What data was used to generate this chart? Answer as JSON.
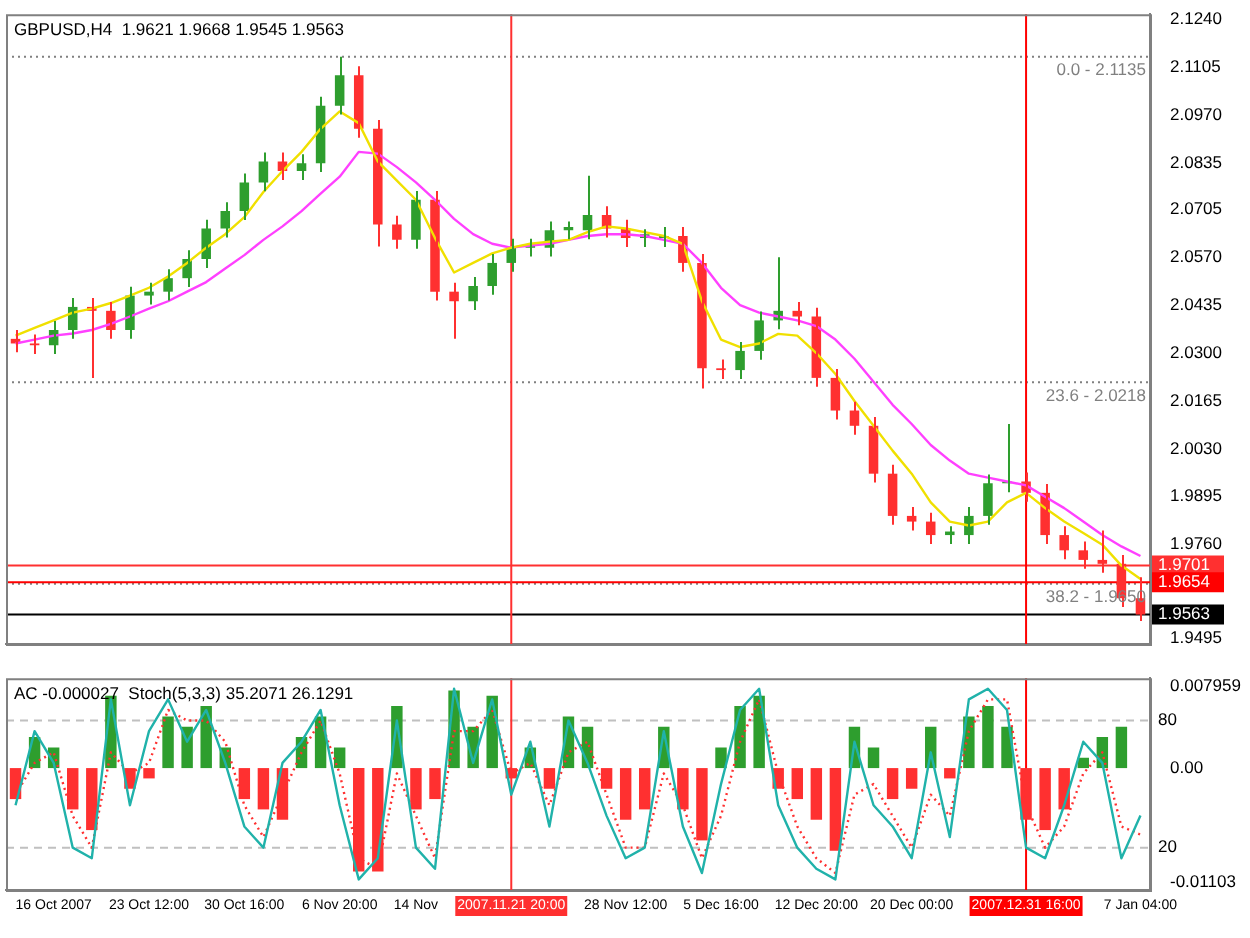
{
  "chart_data": [
    {
      "type": "candlestick",
      "title": "GBPUSD,H4  1.9621 1.9668 1.9545 1.9563",
      "categories": [
        null,
        null,
        "16 Oct 2007",
        null,
        null,
        null,
        null,
        "23 Oct 12:00",
        null,
        null,
        null,
        null,
        "30 Oct 16:00",
        null,
        null,
        null,
        null,
        "6 Nov 20:00",
        null,
        null,
        null,
        "14 Nov",
        null,
        null,
        null,
        null,
        "2007.11.21 20:00",
        null,
        null,
        null,
        null,
        null,
        "28 Nov 12:00",
        null,
        null,
        null,
        null,
        "5 Dec 16:00",
        null,
        null,
        null,
        null,
        "12 Dec 20:00",
        null,
        null,
        null,
        null,
        "20 Dec 00:00",
        null,
        null,
        null,
        null,
        null,
        "2007.12.31 16:00",
        null,
        null,
        null,
        null,
        null,
        "7 Jan 04:00"
      ],
      "annotations": [
        {
          "text": "0.0 - 2.1135",
          "y": 2.1135
        },
        {
          "text": "23.6 - 2.0218",
          "y": 2.0218
        },
        {
          "text": "38.2 - 1.9650",
          "y": 1.965
        }
      ],
      "ohlc": [
        [
          2.034,
          2.0365,
          2.0302,
          2.0327
        ],
        [
          2.0327,
          2.0352,
          2.0297,
          2.0322
        ],
        [
          2.0322,
          2.039,
          2.0297,
          2.0365
        ],
        [
          2.0365,
          2.0455,
          2.034,
          2.043
        ],
        [
          2.043,
          2.0455,
          2.023,
          2.0419
        ],
        [
          2.0419,
          2.0444,
          2.034,
          2.0365
        ],
        [
          2.0365,
          2.0487,
          2.034,
          2.0462
        ],
        [
          2.0462,
          2.0498,
          2.0437,
          2.0473
        ],
        [
          2.0473,
          2.0536,
          2.0448,
          2.0511
        ],
        [
          2.0511,
          2.059,
          2.0486,
          2.0565
        ],
        [
          2.0565,
          2.0676,
          2.054,
          2.0651
        ],
        [
          2.0651,
          2.0725,
          2.0626,
          2.07
        ],
        [
          2.07,
          2.0806,
          2.0675,
          2.0781
        ],
        [
          2.0781,
          2.0865,
          2.0756,
          2.084
        ],
        [
          2.084,
          2.0865,
          2.0788,
          2.0813
        ],
        [
          2.0813,
          2.086,
          2.0788,
          2.0835
        ],
        [
          2.0835,
          2.1022,
          2.081,
          2.0997
        ],
        [
          2.0997,
          2.1135,
          2.0972,
          2.1083
        ],
        [
          2.1083,
          2.1108,
          2.0907,
          2.0932
        ],
        [
          2.0932,
          2.0957,
          2.06,
          2.0662
        ],
        [
          2.0662,
          2.0687,
          2.0594,
          2.0619
        ],
        [
          2.0619,
          2.0757,
          2.0594,
          2.0732
        ],
        [
          2.0732,
          2.0757,
          2.0448,
          2.0473
        ],
        [
          2.0473,
          2.0498,
          2.034,
          2.0446
        ],
        [
          2.0446,
          2.0514,
          2.0421,
          2.0489
        ],
        [
          2.0489,
          2.0579,
          2.0464,
          2.0554
        ],
        [
          2.0554,
          2.0622,
          2.0529,
          2.0597
        ],
        [
          2.0597,
          2.0622,
          2.0572,
          2.0605
        ],
        [
          2.0597,
          2.0671,
          2.0572,
          2.0646
        ],
        [
          2.0646,
          2.0671,
          2.0621,
          2.0655
        ],
        [
          2.0646,
          2.08,
          2.0621,
          2.0689
        ],
        [
          2.0689,
          2.0714,
          2.0626,
          2.0651
        ],
        [
          2.0651,
          2.0676,
          2.0599,
          2.0624
        ],
        [
          2.0624,
          2.0649,
          2.0599,
          2.0635
        ],
        [
          2.0624,
          2.0655,
          2.0599,
          2.063
        ],
        [
          2.063,
          2.0655,
          2.0529,
          2.0554
        ],
        [
          2.0554,
          2.0579,
          2.02,
          2.0257
        ],
        [
          2.0257,
          2.0282,
          2.0227,
          2.0252
        ],
        [
          2.0252,
          2.0331,
          2.0227,
          2.0306
        ],
        [
          2.0306,
          2.0417,
          2.0281,
          2.0392
        ],
        [
          2.0392,
          2.057,
          2.0367,
          2.0419
        ],
        [
          2.0419,
          2.0444,
          2.0378,
          2.0403
        ],
        [
          2.0403,
          2.0428,
          2.0205,
          2.023
        ],
        [
          2.023,
          2.0255,
          2.0113,
          2.0138
        ],
        [
          2.0138,
          2.0163,
          2.007,
          2.0095
        ],
        [
          2.0095,
          2.012,
          1.9935,
          1.996
        ],
        [
          1.996,
          1.9985,
          1.9816,
          1.9841
        ],
        [
          1.9841,
          1.9866,
          1.98,
          1.9825
        ],
        [
          1.9825,
          1.985,
          1.9762,
          1.9787
        ],
        [
          1.9787,
          1.9812,
          1.9762,
          1.9797
        ],
        [
          1.9787,
          1.9866,
          1.9762,
          1.9841
        ],
        [
          1.9841,
          1.9958,
          1.9816,
          1.9933
        ],
        [
          1.9933,
          2.01,
          1.9908,
          1.9938
        ],
        [
          1.9938,
          1.9963,
          1.9881,
          1.9906
        ],
        [
          1.9906,
          1.9931,
          1.9762,
          1.9787
        ],
        [
          1.9787,
          1.9812,
          1.9719,
          1.9744
        ],
        [
          1.9744,
          1.9769,
          1.9692,
          1.9717
        ],
        [
          1.9717,
          1.98,
          1.9681,
          1.9706
        ],
        [
          1.9706,
          1.9731,
          1.9584,
          1.9609
        ],
        [
          1.9609,
          1.9668,
          1.9545,
          1.9563
        ]
      ],
      "colors": [
        "#ff3030",
        "#ff3030",
        "#2e9e2e",
        "#2e9e2e",
        "#ff3030",
        "#ff3030",
        "#2e9e2e",
        "#2e9e2e",
        "#2e9e2e",
        "#2e9e2e",
        "#2e9e2e",
        "#2e9e2e",
        "#2e9e2e",
        "#2e9e2e",
        "#ff3030",
        "#2e9e2e",
        "#2e9e2e",
        "#2e9e2e",
        "#ff3030",
        "#ff3030",
        "#ff3030",
        "#2e9e2e",
        "#ff3030",
        "#ff3030",
        "#2e9e2e",
        "#2e9e2e",
        "#2e9e2e",
        "#2e9e2e",
        "#2e9e2e",
        "#2e9e2e",
        "#2e9e2e",
        "#ff3030",
        "#ff3030",
        "#2e9e2e",
        "#2e9e2e",
        "#ff3030",
        "#ff3030",
        "#ff3030",
        "#2e9e2e",
        "#2e9e2e",
        "#2e9e2e",
        "#ff3030",
        "#ff3030",
        "#ff3030",
        "#ff3030",
        "#ff3030",
        "#ff3030",
        "#ff3030",
        "#ff3030",
        "#2e9e2e",
        "#2e9e2e",
        "#2e9e2e",
        "#2e9e2e",
        "#ff3030",
        "#ff3030",
        "#ff3030",
        "#ff3030",
        "#ff3030",
        "#ff3030",
        "#ff3030"
      ],
      "series": [
        {
          "type": "line",
          "color": "#f0e000",
          "values": [
            2.0349,
            2.0371,
            2.0392,
            2.0414,
            2.0425,
            2.0441,
            2.0462,
            2.0484,
            2.0516,
            2.0554,
            2.0597,
            2.0635,
            2.0683,
            2.0754,
            2.0813,
            2.0867,
            2.0932,
            2.0981,
            2.0948,
            2.084,
            2.0786,
            2.0732,
            2.0624,
            2.0527,
            2.0554,
            2.0581,
            2.0597,
            2.0608,
            2.0614,
            2.0619,
            2.0641,
            2.0657,
            2.0651,
            2.0641,
            2.063,
            2.0608,
            2.0446,
            2.0338,
            2.0317,
            2.0327,
            2.0354,
            2.0349,
            2.03,
            2.0241,
            2.0165,
            2.0095,
            2.0025,
            1.996,
            1.9879,
            1.9825,
            1.9814,
            1.9825,
            1.9879,
            1.9906,
            1.9863,
            1.9825,
            1.9793,
            1.976,
            1.9701,
            1.9663
          ]
        },
        {
          "type": "line",
          "color": "#ff40ff",
          "values": [
            2.0327,
            2.0338,
            2.0349,
            2.0355,
            2.0365,
            2.0382,
            2.0403,
            2.0425,
            2.0446,
            2.0473,
            2.05,
            2.0538,
            2.0576,
            2.0619,
            2.0657,
            2.07,
            2.0749,
            2.0797,
            2.0867,
            2.0862,
            2.0824,
            2.0781,
            2.0732,
            2.0678,
            2.0635,
            2.0608,
            2.0597,
            2.0603,
            2.0608,
            2.0619,
            2.063,
            2.0635,
            2.0635,
            2.063,
            2.0619,
            2.0608,
            2.0554,
            2.0484,
            2.0435,
            2.0414,
            2.0403,
            2.0392,
            2.0376,
            2.0338,
            2.0284,
            2.0219,
            2.0154,
            2.01,
            2.0041,
            1.9997,
            1.996,
            1.9949,
            1.9938,
            1.9927,
            1.9895,
            1.9863,
            1.9825,
            1.9787,
            1.9755,
            1.9728
          ]
        }
      ],
      "ylim": [
        1.948,
        2.1255
      ],
      "yticks": [
        {
          "value": 2.124,
          "label": "2.1240"
        },
        {
          "value": 2.1105,
          "label": "2.1105"
        },
        {
          "value": 2.097,
          "label": "2.0970"
        },
        {
          "value": 2.0835,
          "label": "2.0835"
        },
        {
          "value": 2.0705,
          "label": "2.0705"
        },
        {
          "value": 2.057,
          "label": "2.0570"
        },
        {
          "value": 2.0435,
          "label": "2.0435"
        },
        {
          "value": 2.03,
          "label": "2.0300"
        },
        {
          "value": 2.0165,
          "label": "2.0165"
        },
        {
          "value": 2.003,
          "label": "2.0030"
        },
        {
          "value": 1.9895,
          "label": "1.9895"
        },
        {
          "value": 1.976,
          "label": "1.9760"
        },
        {
          "value": 1.9495,
          "label": "1.9495"
        }
      ],
      "ref_lines": [
        {
          "axis": "y",
          "value": 2.1135,
          "color": "#808080",
          "line_style": "dotted"
        },
        {
          "axis": "y",
          "value": 2.0218,
          "color": "#808080",
          "line_style": "dotted"
        },
        {
          "axis": "y",
          "value": 1.965,
          "color": "#808080",
          "line_style": "dotted"
        },
        {
          "axis": "y",
          "value": 1.9701,
          "label": "1.9701",
          "color": "#ff3030",
          "line_style": "solid"
        },
        {
          "axis": "y",
          "value": 1.9654,
          "label": "1.9654",
          "color": "#ff0000",
          "line_style": "solid"
        },
        {
          "axis": "y",
          "value": 1.9563,
          "label": "1.9563",
          "color": "#000000",
          "line_style": "solid"
        },
        {
          "axis": "x",
          "value": "2007.11.21 20:00",
          "color": "#ff3030",
          "line_style": "solid"
        },
        {
          "axis": "x",
          "value": "2007.12.31 16:00",
          "color": "#ff0000",
          "line_style": "solid"
        }
      ],
      "marker": "none",
      "legend": false,
      "tick_labels": "y"
    },
    {
      "type": "bar",
      "title": "AC -0.000027  Stoch(5,3,3) 35.2071 26.1291",
      "categories": [
        null,
        null,
        "16 Oct 2007",
        null,
        null,
        null,
        null,
        "23 Oct 12:00",
        null,
        null,
        null,
        null,
        "30 Oct 16:00",
        null,
        null,
        null,
        null,
        "6 Nov 20:00",
        null,
        null,
        null,
        "14 Nov",
        null,
        null,
        null,
        null,
        "2007.11.21 20:00",
        null,
        null,
        null,
        null,
        null,
        "28 Nov 12:00",
        null,
        null,
        null,
        null,
        "5 Dec 16:00",
        null,
        null,
        null,
        null,
        "12 Dec 20:00",
        null,
        null,
        null,
        null,
        "20 Dec 00:00",
        null,
        null,
        null,
        null,
        null,
        "2007.12.31 16:00",
        null,
        null,
        null,
        null,
        null,
        "7 Jan 04:00"
      ],
      "values": [
        -0.003,
        0.003,
        0.002,
        -0.004,
        -0.006,
        0.007,
        -0.002,
        -0.001,
        0.005,
        0.004,
        0.006,
        0.002,
        -0.003,
        -0.004,
        -0.005,
        0.003,
        0.005,
        0.002,
        -0.01,
        -0.01,
        0.006,
        -0.004,
        -0.003,
        0.0075,
        0.004,
        0.007,
        -0.001,
        0.002,
        -0.002,
        0.005,
        0.004,
        -0.002,
        -0.005,
        -0.004,
        0.004,
        -0.004,
        -0.007,
        0.002,
        0.006,
        0.007,
        -0.002,
        -0.003,
        -0.005,
        -0.008,
        0.004,
        0.002,
        -0.003,
        -0.002,
        0.004,
        -0.001,
        0.005,
        0.006,
        0.004,
        -0.005,
        -0.006,
        -0.004,
        0.001,
        0.003,
        0.004,
        null
      ],
      "colors": [
        "#ff3030",
        "#2e9e2e",
        "#2e9e2e",
        "#ff3030",
        "#ff3030",
        "#2e9e2e",
        "#ff3030",
        "#ff3030",
        "#2e9e2e",
        "#2e9e2e",
        "#2e9e2e",
        "#2e9e2e",
        "#ff3030",
        "#ff3030",
        "#ff3030",
        "#2e9e2e",
        "#2e9e2e",
        "#2e9e2e",
        "#ff3030",
        "#ff3030",
        "#2e9e2e",
        "#ff3030",
        "#ff3030",
        "#2e9e2e",
        "#2e9e2e",
        "#2e9e2e",
        "#ff3030",
        "#2e9e2e",
        "#ff3030",
        "#2e9e2e",
        "#2e9e2e",
        "#ff3030",
        "#ff3030",
        "#ff3030",
        "#2e9e2e",
        "#ff3030",
        "#ff3030",
        "#2e9e2e",
        "#2e9e2e",
        "#2e9e2e",
        "#ff3030",
        "#ff3030",
        "#ff3030",
        "#ff3030",
        "#2e9e2e",
        "#2e9e2e",
        "#ff3030",
        "#ff3030",
        "#2e9e2e",
        "#ff3030",
        "#2e9e2e",
        "#2e9e2e",
        "#2e9e2e",
        "#ff3030",
        "#ff3030",
        "#ff3030",
        "#2e9e2e",
        "#2e9e2e",
        "#2e9e2e",
        "#ff3030"
      ],
      "series": [
        {
          "type": "line",
          "axis": "y2",
          "color": "#20b2aa",
          "line_style": "solid",
          "values": [
            40,
            75,
            60,
            20,
            15,
            90,
            40,
            75,
            90,
            70,
            85,
            60,
            30,
            20,
            60,
            70,
            85,
            40,
            5,
            15,
            80,
            20,
            10,
            95,
            60,
            90,
            45,
            70,
            30,
            80,
            60,
            35,
            15,
            20,
            75,
            30,
            8,
            50,
            85,
            95,
            40,
            20,
            10,
            5,
            70,
            40,
            30,
            15,
            65,
            25,
            90,
            95,
            85,
            20,
            15,
            40,
            70,
            60,
            15,
            35.2071
          ]
        },
        {
          "type": "line",
          "axis": "y2",
          "color": "#ff3030",
          "line_style": "dotted",
          "values": [
            45,
            60,
            65,
            35,
            20,
            65,
            55,
            60,
            85,
            80,
            80,
            70,
            40,
            25,
            45,
            65,
            80,
            55,
            15,
            10,
            55,
            35,
            15,
            75,
            75,
            85,
            55,
            60,
            40,
            65,
            70,
            45,
            20,
            20,
            55,
            40,
            15,
            35,
            70,
            90,
            55,
            30,
            15,
            8,
            45,
            50,
            35,
            20,
            45,
            35,
            75,
            90,
            90,
            40,
            20,
            30,
            55,
            65,
            30,
            26.1291
          ]
        }
      ],
      "ylim": [
        -0.0118,
        0.0087
      ],
      "yticks": [
        {
          "value": -0.01103,
          "label": "-0.01103"
        },
        {
          "value": 0,
          "label": "0.00"
        },
        {
          "value": 0.007959,
          "label": "0.007959"
        }
      ],
      "y2lim": [
        0,
        100
      ],
      "y2ticks": [
        20,
        80
      ],
      "ref_lines": [
        {
          "axis": "y2",
          "value": 80,
          "color": "#c0c0c0",
          "line_style": "dashed"
        },
        {
          "axis": "y2",
          "value": 20,
          "color": "#c0c0c0",
          "line_style": "dashed"
        },
        {
          "axis": "x",
          "value": "2007.11.21 20:00",
          "color": "#ff3030",
          "line_style": "solid"
        },
        {
          "axis": "x",
          "value": "2007.12.31 16:00",
          "color": "#ff0000",
          "line_style": "solid"
        }
      ],
      "marker": "none",
      "legend": false
    }
  ]
}
